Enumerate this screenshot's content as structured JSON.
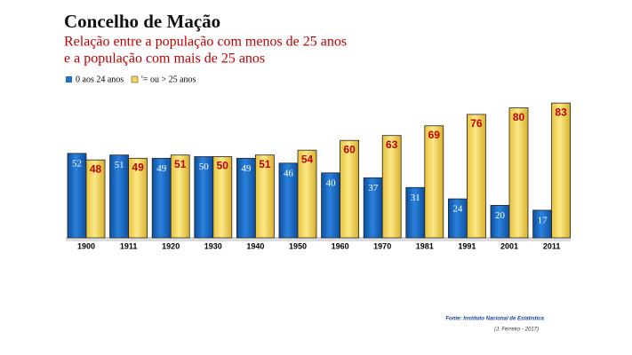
{
  "chart_data": {
    "type": "bar",
    "title": "Concelho de Mação",
    "subtitle": [
      "Relação entre a população com menos de 25 anos",
      "e a população com mais de 25 anos"
    ],
    "categories": [
      "1900",
      "1911",
      "1920",
      "1930",
      "1940",
      "1950",
      "1960",
      "1970",
      "1981",
      "1991",
      "2001",
      "2011"
    ],
    "series": [
      {
        "name": "0 aos 24 anos",
        "color": "#1f6fc5",
        "values": [
          52,
          51,
          49,
          50,
          49,
          46,
          40,
          37,
          31,
          24,
          20,
          17
        ]
      },
      {
        "name": "'= ou > 25 anos",
        "color": "#f5d65a",
        "values": [
          48,
          49,
          51,
          50,
          51,
          54,
          60,
          63,
          69,
          76,
          80,
          83
        ]
      }
    ],
    "source": "Fonte: Instituto Nacional de Estatística",
    "credit": "(J. Ferreiro - 2017)"
  }
}
